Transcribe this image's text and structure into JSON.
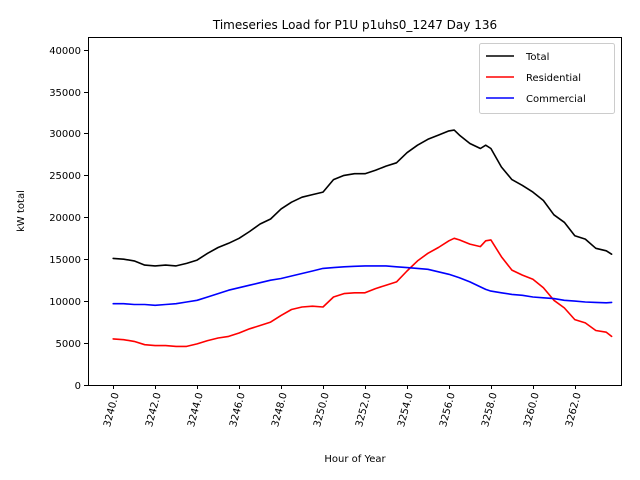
{
  "chart_data": {
    "type": "line",
    "title": "Timeseries Load for P1U p1uhs0_1247  Day 136",
    "xlabel": "Hour of Year",
    "ylabel": "kW total",
    "xlim": [
      3238.8,
      3264.2
    ],
    "ylim": [
      0,
      41500
    ],
    "x_ticks": [
      3240,
      3242,
      3244,
      3246,
      3248,
      3250,
      3252,
      3254,
      3256,
      3258,
      3260,
      3262
    ],
    "x_tick_labels": [
      "3240.0",
      "3242.0",
      "3244.0",
      "3246.0",
      "3248.0",
      "3250.0",
      "3252.0",
      "3254.0",
      "3256.0",
      "3258.0",
      "3260.0",
      "3262.0"
    ],
    "y_ticks": [
      0,
      5000,
      10000,
      15000,
      20000,
      25000,
      30000,
      35000,
      40000
    ],
    "y_tick_labels": [
      "0",
      "5000",
      "10000",
      "15000",
      "20000",
      "25000",
      "30000",
      "35000",
      "40000"
    ],
    "legend_position": "top-right",
    "series": [
      {
        "name": "Total",
        "color": "#000000",
        "x": [
          3240.0,
          3240.5,
          3241.0,
          3241.5,
          3242.0,
          3242.5,
          3243.0,
          3243.5,
          3244.0,
          3244.5,
          3245.0,
          3245.5,
          3246.0,
          3246.5,
          3247.0,
          3247.5,
          3248.0,
          3248.5,
          3249.0,
          3249.5,
          3250.0,
          3250.5,
          3251.0,
          3251.5,
          3252.0,
          3252.5,
          3253.0,
          3253.5,
          3254.0,
          3254.5,
          3255.0,
          3255.5,
          3256.0,
          3256.25,
          3256.5,
          3257.0,
          3257.5,
          3257.75,
          3258.0,
          3258.5,
          3259.0,
          3259.5,
          3260.0,
          3260.5,
          3261.0,
          3261.5,
          3262.0,
          3262.5,
          3263.0,
          3263.5,
          3263.75
        ],
        "values": [
          15100,
          15000,
          14800,
          14300,
          14200,
          14300,
          14200,
          14500,
          14900,
          15700,
          16400,
          16900,
          17500,
          18300,
          19200,
          19800,
          21000,
          21800,
          22400,
          22700,
          23000,
          24500,
          25000,
          25200,
          25200,
          25600,
          26100,
          26500,
          27700,
          28600,
          29300,
          29800,
          30300,
          30400,
          29800,
          28800,
          28200,
          28600,
          28200,
          26000,
          24500,
          23800,
          23000,
          22000,
          20300,
          19400,
          17800,
          17400,
          16300,
          16000,
          15600
        ]
      },
      {
        "name": "Residential",
        "color": "#ff0000",
        "x": [
          3240.0,
          3240.5,
          3241.0,
          3241.5,
          3242.0,
          3242.5,
          3243.0,
          3243.5,
          3244.0,
          3244.5,
          3245.0,
          3245.5,
          3246.0,
          3246.5,
          3247.0,
          3247.5,
          3248.0,
          3248.5,
          3249.0,
          3249.5,
          3250.0,
          3250.5,
          3251.0,
          3251.5,
          3252.0,
          3252.5,
          3253.0,
          3253.5,
          3254.0,
          3254.5,
          3255.0,
          3255.5,
          3256.0,
          3256.25,
          3256.5,
          3257.0,
          3257.5,
          3257.75,
          3258.0,
          3258.5,
          3259.0,
          3259.5,
          3260.0,
          3260.5,
          3261.0,
          3261.5,
          3262.0,
          3262.5,
          3263.0,
          3263.5,
          3263.75
        ],
        "values": [
          5500,
          5400,
          5200,
          4800,
          4700,
          4700,
          4600,
          4600,
          4900,
          5300,
          5600,
          5800,
          6200,
          6700,
          7100,
          7500,
          8300,
          9000,
          9300,
          9400,
          9300,
          10500,
          10900,
          11000,
          11000,
          11500,
          11900,
          12300,
          13600,
          14800,
          15700,
          16400,
          17200,
          17500,
          17300,
          16800,
          16500,
          17200,
          17300,
          15300,
          13700,
          13100,
          12600,
          11600,
          10100,
          9200,
          7800,
          7400,
          6500,
          6300,
          5800
        ]
      },
      {
        "name": "Commercial",
        "color": "#0000ff",
        "x": [
          3240.0,
          3240.5,
          3241.0,
          3241.5,
          3242.0,
          3242.5,
          3243.0,
          3243.5,
          3244.0,
          3244.5,
          3245.0,
          3245.5,
          3246.0,
          3246.5,
          3247.0,
          3247.5,
          3248.0,
          3248.5,
          3249.0,
          3249.5,
          3250.0,
          3250.5,
          3251.0,
          3251.5,
          3252.0,
          3252.5,
          3253.0,
          3253.5,
          3254.0,
          3254.5,
          3255.0,
          3255.5,
          3256.0,
          3256.25,
          3256.5,
          3257.0,
          3257.5,
          3257.75,
          3258.0,
          3258.5,
          3259.0,
          3259.5,
          3260.0,
          3260.5,
          3261.0,
          3261.5,
          3262.0,
          3262.5,
          3263.0,
          3263.5,
          3263.75
        ],
        "values": [
          9700,
          9700,
          9600,
          9600,
          9500,
          9600,
          9700,
          9900,
          10100,
          10500,
          10900,
          11300,
          11600,
          11900,
          12200,
          12500,
          12700,
          13000,
          13300,
          13600,
          13900,
          14000,
          14100,
          14150,
          14200,
          14200,
          14200,
          14100,
          14000,
          13900,
          13800,
          13500,
          13200,
          13000,
          12800,
          12300,
          11700,
          11400,
          11200,
          11000,
          10800,
          10700,
          10500,
          10400,
          10300,
          10100,
          10000,
          9900,
          9850,
          9800,
          9850
        ]
      }
    ]
  }
}
